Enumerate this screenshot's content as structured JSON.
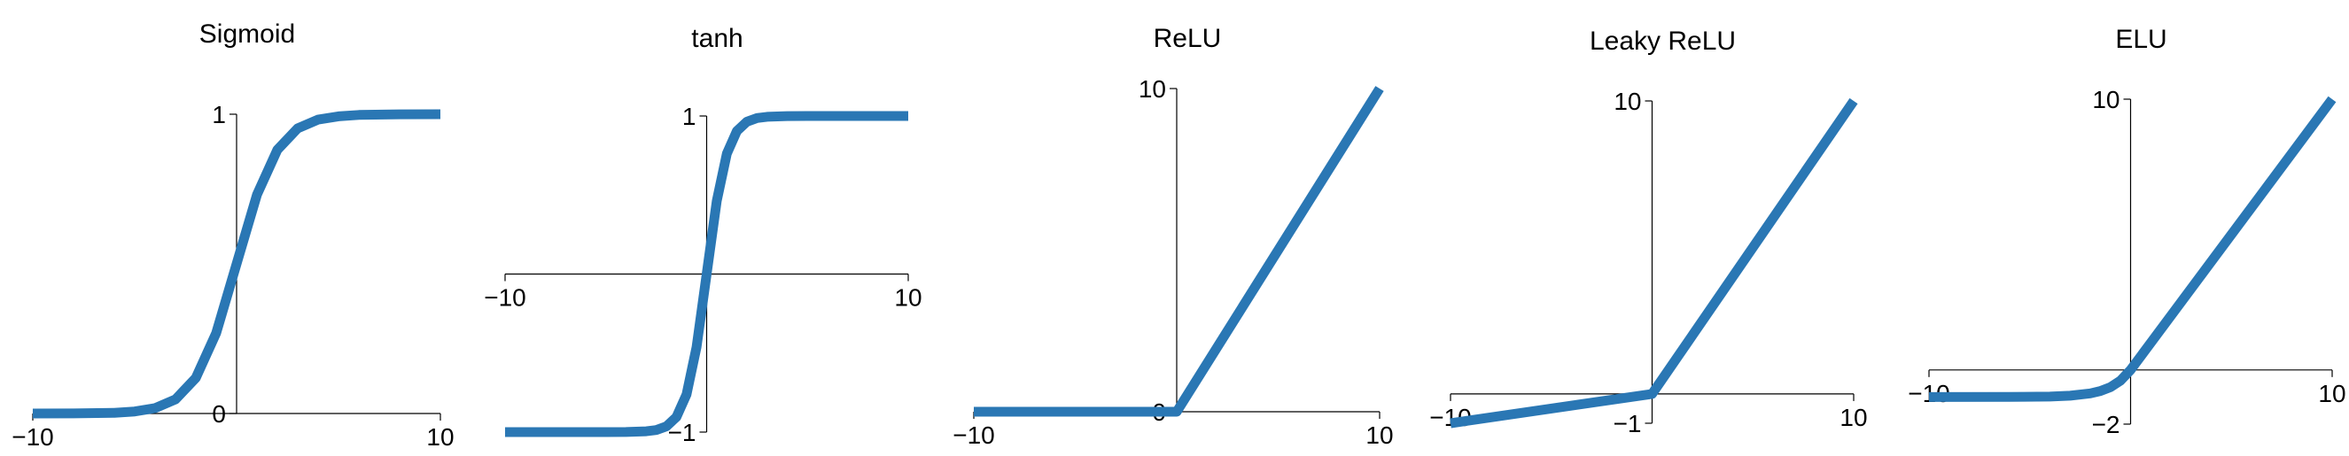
{
  "chart_data": [
    {
      "type": "line",
      "title": "Sigmoid",
      "xlim": [
        -10,
        10
      ],
      "ylim": [
        0,
        1
      ],
      "x_ticks": [
        "−10",
        "10"
      ],
      "y_ticks": [
        "0",
        "1"
      ],
      "series": [
        {
          "x": [
            -10,
            -8,
            -6,
            -5,
            -4,
            -3,
            -2,
            -1,
            0,
            1,
            2,
            3,
            4,
            5,
            6,
            8,
            10
          ],
          "y": [
            5e-05,
            0.0003,
            0.0025,
            0.0067,
            0.018,
            0.047,
            0.119,
            0.269,
            0.5,
            0.731,
            0.881,
            0.953,
            0.982,
            0.993,
            0.9975,
            0.9997,
            0.99995
          ]
        }
      ]
    },
    {
      "type": "line",
      "title": "tanh",
      "xlim": [
        -10,
        10
      ],
      "ylim": [
        -1,
        1
      ],
      "x_ticks": [
        "−10",
        "10"
      ],
      "y_ticks": [
        "−1",
        "1"
      ],
      "series": [
        {
          "x": [
            -10,
            -5,
            -4,
            -3,
            -2.5,
            -2,
            -1.5,
            -1,
            -0.5,
            0,
            0.5,
            1,
            1.5,
            2,
            2.5,
            3,
            4,
            5,
            10
          ],
          "y": [
            -1,
            -0.9999,
            -0.9993,
            -0.995,
            -0.987,
            -0.964,
            -0.905,
            -0.762,
            -0.462,
            0,
            0.462,
            0.762,
            0.905,
            0.964,
            0.987,
            0.995,
            0.9993,
            0.9999,
            1
          ]
        }
      ]
    },
    {
      "type": "line",
      "title": "ReLU",
      "xlim": [
        -10,
        10
      ],
      "ylim": [
        0,
        10
      ],
      "x_ticks": [
        "−10",
        "10"
      ],
      "y_ticks": [
        "0",
        "10"
      ],
      "series": [
        {
          "x": [
            -10,
            0,
            10
          ],
          "y": [
            0,
            0,
            10
          ]
        }
      ]
    },
    {
      "type": "line",
      "title": "Leaky ReLU",
      "xlim": [
        -10,
        10
      ],
      "ylim": [
        -1,
        10
      ],
      "x_ticks": [
        "−10",
        "10"
      ],
      "y_ticks": [
        "−1",
        "10"
      ],
      "series": [
        {
          "x": [
            -10,
            0,
            10
          ],
          "y": [
            -1,
            0,
            10
          ]
        }
      ]
    },
    {
      "type": "line",
      "title": "ELU",
      "xlim": [
        -10,
        10
      ],
      "ylim": [
        -2,
        10
      ],
      "x_ticks": [
        "−10",
        "10"
      ],
      "y_ticks": [
        "−2",
        "10"
      ],
      "series": [
        {
          "x": [
            -10,
            -6,
            -4,
            -3,
            -2,
            -1.5,
            -1,
            -0.5,
            0,
            10
          ],
          "y": [
            -1,
            -0.9975,
            -0.982,
            -0.95,
            -0.865,
            -0.777,
            -0.632,
            -0.393,
            0,
            10
          ]
        }
      ]
    }
  ],
  "colors": {
    "line": "#2a77b4",
    "axis": "#000000"
  }
}
